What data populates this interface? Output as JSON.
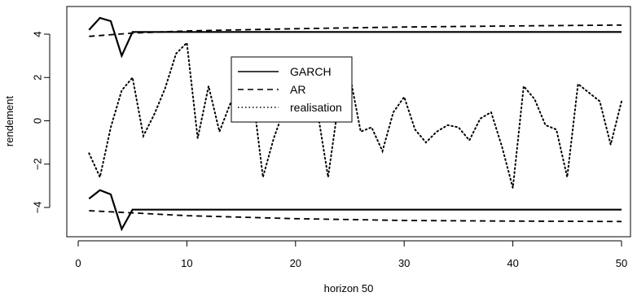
{
  "chart_data": {
    "type": "line",
    "xlabel": "horizon 50",
    "ylabel": "rendement",
    "xlim": [
      0,
      50
    ],
    "ylim": [
      -5.5,
      5
    ],
    "x_ticks": [
      "0",
      "10",
      "20",
      "30",
      "40",
      "50"
    ],
    "y_ticks": [
      "-4",
      "-2",
      "0",
      "2",
      "4"
    ],
    "grid": false,
    "legend_position": "center",
    "legend": [
      "GARCH",
      "AR",
      "realisation"
    ],
    "series": [
      {
        "name": "GARCH",
        "line_style": "solid",
        "bands": [
          {
            "x": [
              1,
              2,
              3,
              4,
              5,
              50
            ],
            "y": [
              4.2,
              4.75,
              4.6,
              3.0,
              4.1,
              4.1
            ]
          },
          {
            "x": [
              1,
              2,
              3,
              4,
              5,
              50
            ],
            "y": [
              -3.6,
              -3.2,
              -3.4,
              -5.0,
              -4.1,
              -4.1
            ]
          }
        ]
      },
      {
        "name": "AR",
        "line_style": "dashed",
        "bands": [
          {
            "x": [
              1,
              5,
              10,
              20,
              30,
              40,
              50
            ],
            "y": [
              3.9,
              4.05,
              4.15,
              4.25,
              4.33,
              4.38,
              4.42
            ]
          },
          {
            "x": [
              1,
              5,
              10,
              20,
              30,
              40,
              50
            ],
            "y": [
              -4.15,
              -4.25,
              -4.38,
              -4.52,
              -4.6,
              -4.63,
              -4.65
            ]
          }
        ]
      },
      {
        "name": "realisation",
        "line_style": "dotted",
        "x": [
          1,
          2,
          3,
          4,
          5,
          6,
          7,
          8,
          9,
          10,
          11,
          12,
          13,
          14,
          15,
          16,
          17,
          18,
          19,
          20,
          21,
          22,
          23,
          24,
          25,
          26,
          27,
          28,
          29,
          30,
          31,
          32,
          33,
          34,
          35,
          36,
          37,
          38,
          39,
          40,
          41,
          42,
          43,
          44,
          45,
          46,
          47,
          48,
          49,
          50
        ],
        "y": [
          -1.5,
          -2.6,
          -0.3,
          1.4,
          2.0,
          -0.7,
          0.3,
          1.5,
          3.1,
          3.6,
          -0.8,
          1.6,
          -0.5,
          0.8,
          1.2,
          1.5,
          -2.6,
          -0.8,
          0.6,
          1.3,
          1.0,
          0.5,
          -2.6,
          1.0,
          2.1,
          -0.5,
          -0.3,
          -1.4,
          0.4,
          1.1,
          -0.4,
          -1.0,
          -0.5,
          -0.2,
          -0.3,
          -0.9,
          0.1,
          0.4,
          -1.2,
          -3.1,
          1.6,
          1.0,
          -0.2,
          -0.4,
          -2.6,
          1.7,
          1.3,
          0.9,
          -1.1,
          0.9
        ]
      }
    ]
  }
}
